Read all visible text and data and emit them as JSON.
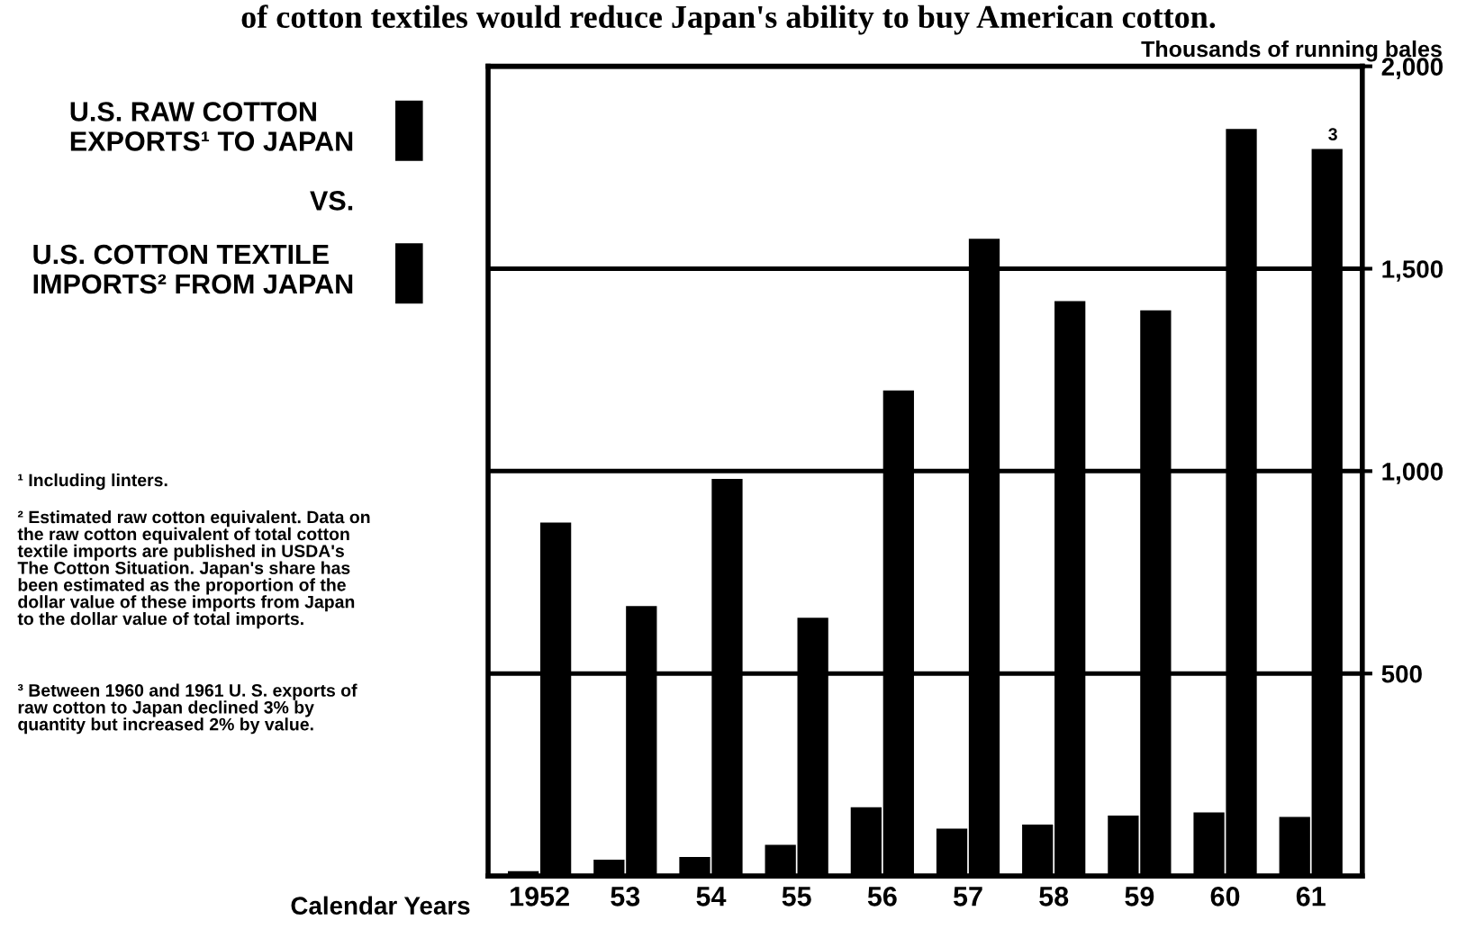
{
  "chart_data": {
    "type": "bar",
    "title": "of cotton textiles would reduce Japan's ability to buy American cotton.",
    "ylabel": "Thousands of running bales",
    "xlabel": "Calendar Years",
    "categories": [
      "1952",
      "53",
      "54",
      "55",
      "56",
      "57",
      "58",
      "59",
      "60",
      "61"
    ],
    "series": [
      {
        "name": "U.S. RAW COTTON EXPORTS¹ TO JAPAN",
        "color": "#000000",
        "values": [
          873,
          667,
          981,
          638,
          1199,
          1574,
          1420,
          1397,
          1845,
          1796
        ]
      },
      {
        "name": "U.S. COTTON TEXTILE IMPORTS² FROM JAPAN",
        "color": "#000000",
        "values": [
          12,
          40,
          47,
          77,
          170,
          117,
          127,
          149,
          157,
          146
        ]
      }
    ],
    "ylim": [
      0,
      2000
    ],
    "yticks": [
      {
        "value": 500,
        "label": "500"
      },
      {
        "value": 1000,
        "label": "1,000"
      },
      {
        "value": 1500,
        "label": "1,500"
      },
      {
        "value": 2000,
        "label": "2,000"
      }
    ],
    "grid": "y",
    "legend": "left",
    "annotations": [
      "VS.",
      {
        "text": "3",
        "x": "61",
        "y": 1796
      },
      "¹ Including linters.",
      "² Estimated raw cotton equivalent. Data on the raw cotton equivalent of total cotton textile imports are published in USDA's The Cotton Situation. Japan's share has been estimated as the proportion of the dollar value of these imports from Japan to the dollar value of total imports.",
      "³ Between 1960 and 1961 U. S. exports of raw cotton to Japan declined 3% by quantity but increased 2% by value."
    ]
  }
}
